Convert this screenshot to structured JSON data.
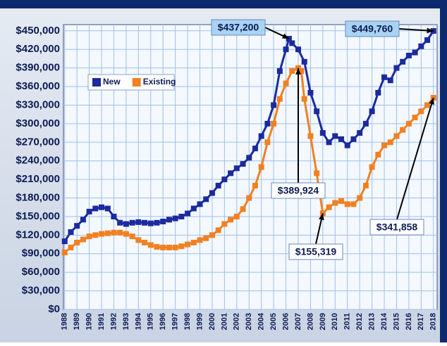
{
  "chart_data": {
    "type": "line",
    "series": [
      {
        "name": "New",
        "color": "#1b2a9e",
        "x": [
          1988,
          1988.5,
          1989,
          1989.5,
          1990,
          1990.5,
          1991,
          1991.5,
          1992,
          1992.5,
          1993,
          1993.5,
          1994,
          1994.5,
          1995,
          1995.5,
          1996,
          1996.5,
          1997,
          1997.5,
          1998,
          1998.5,
          1999,
          1999.5,
          2000,
          2000.5,
          2001,
          2001.5,
          2002,
          2002.5,
          2003,
          2003.5,
          2004,
          2004.5,
          2005,
          2005.5,
          2006,
          2006.25,
          2006.5,
          2007,
          2007.5,
          2008,
          2008.5,
          2009,
          2009.5,
          2010,
          2010.5,
          2011,
          2011.5,
          2012,
          2012.5,
          2013,
          2013.5,
          2014,
          2014.5,
          2015,
          2015.5,
          2016,
          2016.5,
          2017,
          2017.5,
          2018
        ],
        "values": [
          110000,
          125000,
          135000,
          145000,
          158000,
          163000,
          165000,
          163000,
          150000,
          140000,
          138000,
          140000,
          141000,
          140000,
          139000,
          140000,
          142000,
          145000,
          147000,
          150000,
          155000,
          163000,
          170000,
          178000,
          188000,
          200000,
          210000,
          220000,
          228000,
          235000,
          245000,
          260000,
          280000,
          300000,
          330000,
          385000,
          420000,
          437200,
          430000,
          420000,
          400000,
          350000,
          320000,
          285000,
          270000,
          280000,
          275000,
          265000,
          275000,
          285000,
          300000,
          320000,
          350000,
          375000,
          370000,
          390000,
          400000,
          410000,
          415000,
          425000,
          435000,
          449760
        ]
      },
      {
        "name": "Existing",
        "color": "#f28021",
        "x": [
          1988,
          1988.5,
          1989,
          1989.5,
          1990,
          1990.5,
          1991,
          1991.5,
          1992,
          1992.5,
          1993,
          1993.5,
          1994,
          1994.5,
          1995,
          1995.5,
          1996,
          1996.5,
          1997,
          1997.5,
          1998,
          1998.5,
          1999,
          1999.5,
          2000,
          2000.5,
          2001,
          2001.5,
          2002,
          2002.5,
          2003,
          2003.5,
          2004,
          2004.5,
          2005,
          2005.5,
          2006,
          2006.5,
          2007,
          2007.25,
          2007.5,
          2008,
          2008.5,
          2009,
          2009.5,
          2010,
          2010.5,
          2011,
          2011.5,
          2012,
          2012.5,
          2013,
          2013.5,
          2014,
          2014.5,
          2015,
          2015.5,
          2016,
          2016.5,
          2017,
          2017.5,
          2018
        ],
        "values": [
          92000,
          100000,
          108000,
          113000,
          118000,
          120000,
          122000,
          123000,
          124000,
          124000,
          122000,
          118000,
          112000,
          108000,
          104000,
          101000,
          100000,
          100000,
          100000,
          102000,
          105000,
          108000,
          112000,
          115000,
          120000,
          128000,
          138000,
          145000,
          150000,
          162000,
          180000,
          200000,
          230000,
          270000,
          300000,
          340000,
          365000,
          385000,
          389924,
          385000,
          340000,
          280000,
          220000,
          155319,
          165000,
          172000,
          175000,
          170000,
          170000,
          180000,
          200000,
          230000,
          250000,
          265000,
          270000,
          280000,
          290000,
          300000,
          310000,
          320000,
          330000,
          341858
        ]
      }
    ],
    "xlim": [
      1987.9,
      2018.3
    ],
    "xticks": [
      1988,
      1989,
      1990,
      1991,
      1992,
      1993,
      1994,
      1995,
      1996,
      1997,
      1998,
      1999,
      2000,
      2001,
      2002,
      2003,
      2004,
      2005,
      2006,
      2007,
      2008,
      2009,
      2010,
      2011,
      2012,
      2013,
      2014,
      2015,
      2016,
      2017,
      2018
    ],
    "ylim": [
      0,
      460000
    ],
    "yticks": [
      {
        "value": 0,
        "label": "$0"
      },
      {
        "value": 30000,
        "label": "$30,000"
      },
      {
        "value": 60000,
        "label": "$60,000"
      },
      {
        "value": 90000,
        "label": "$90,000"
      },
      {
        "value": 120000,
        "label": "$120,000"
      },
      {
        "value": 150000,
        "label": "$150,000"
      },
      {
        "value": 180000,
        "label": "$180,000"
      },
      {
        "value": 210000,
        "label": "$210,000"
      },
      {
        "value": 240000,
        "label": "$240,000"
      },
      {
        "value": 270000,
        "label": "$270,000"
      },
      {
        "value": 300000,
        "label": "$300,000"
      },
      {
        "value": 330000,
        "label": "$330,000"
      },
      {
        "value": 360000,
        "label": "$360,000"
      },
      {
        "value": 390000,
        "label": "$390,000"
      },
      {
        "value": 420000,
        "label": "$420,000"
      },
      {
        "value": 450000,
        "label": "$450,000"
      }
    ],
    "grid": true,
    "legend": "upper left",
    "annotations": [
      {
        "text": "$437,200",
        "x": 2006.25,
        "y": 437200
      },
      {
        "text": "$449,760",
        "x": 2018,
        "y": 449760
      },
      {
        "text": "$389,924",
        "x": 2007,
        "y": 389924
      },
      {
        "text": "$155,319",
        "x": 2009,
        "y": 155319
      },
      {
        "text": "$341,858",
        "x": 2018,
        "y": 341858
      }
    ]
  }
}
